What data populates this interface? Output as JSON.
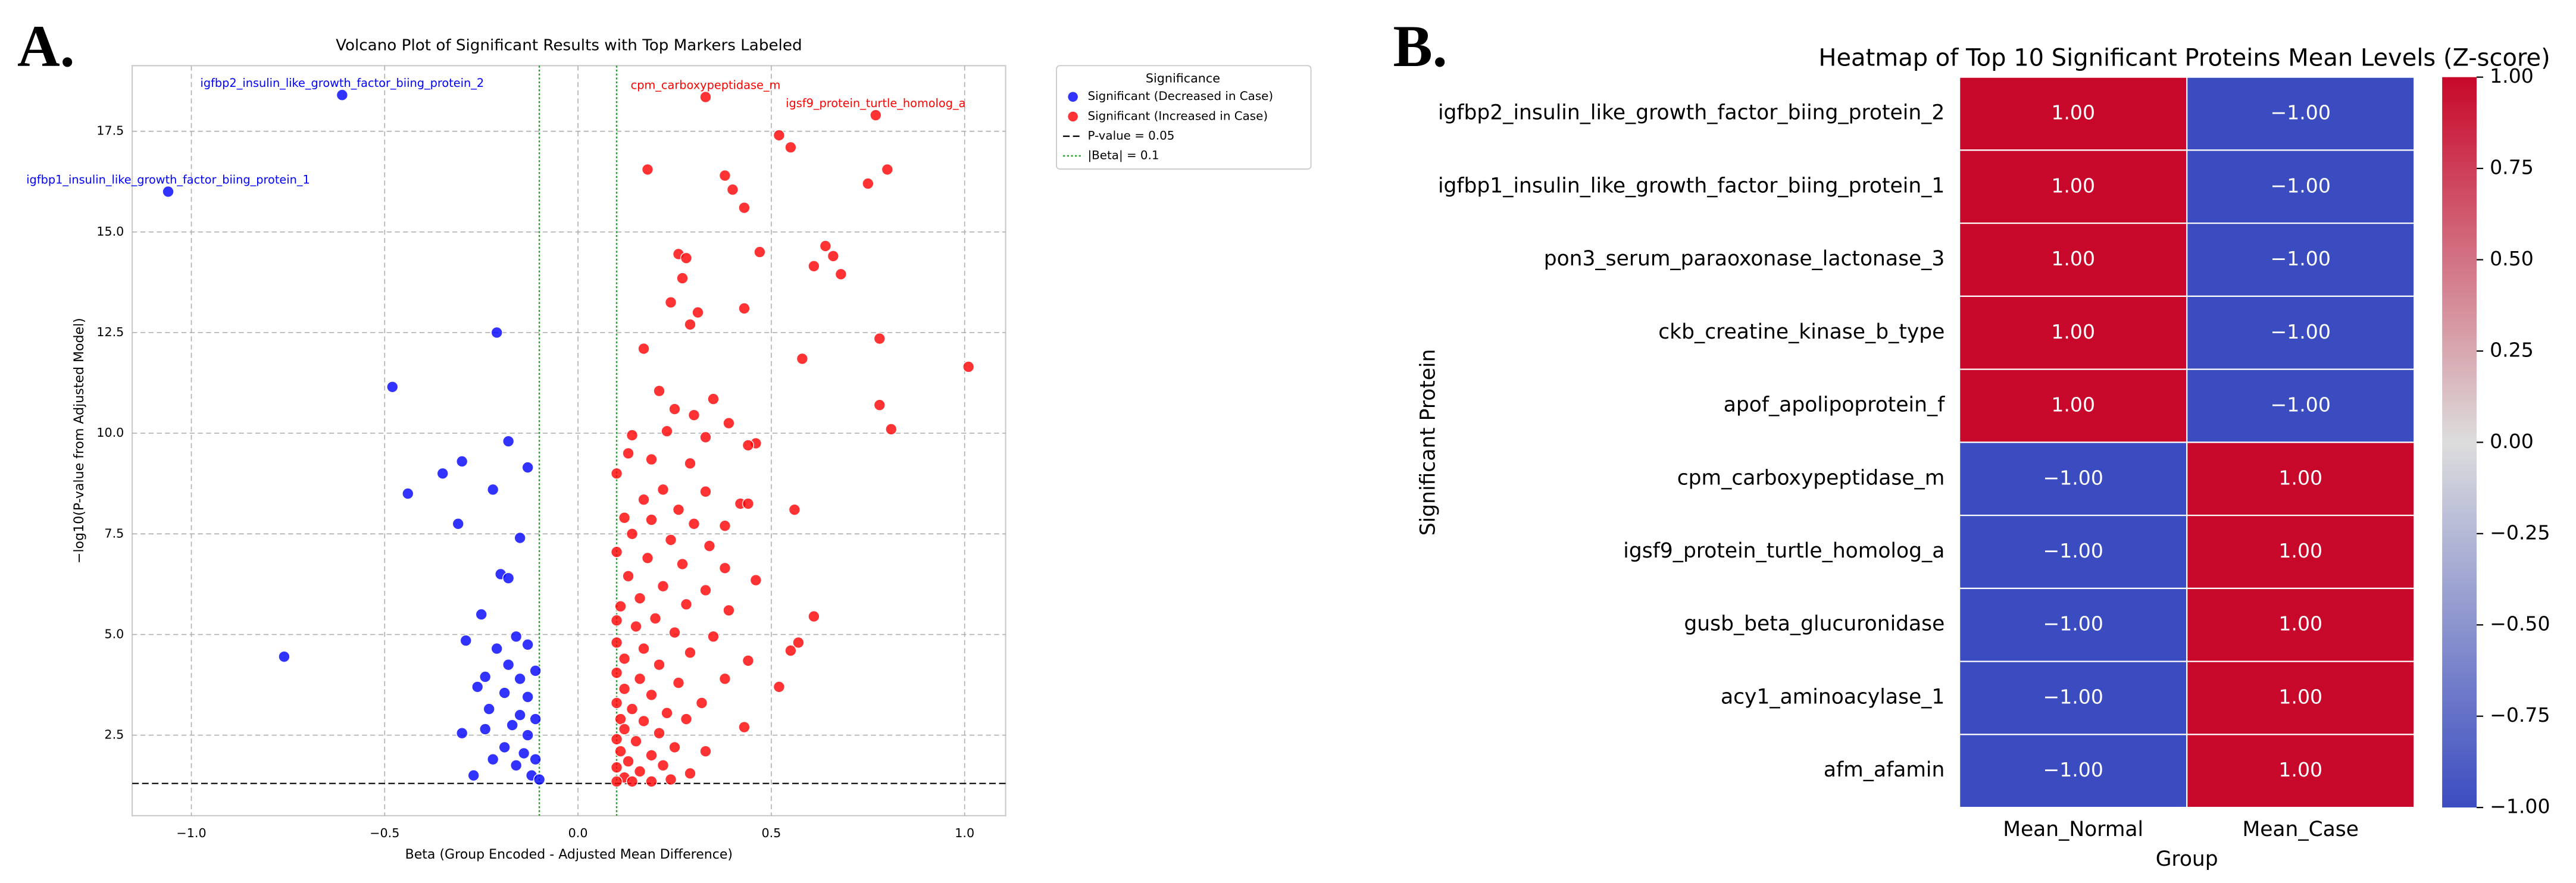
{
  "chart_data": [
    {
      "type": "scatter",
      "panel_label": "A.",
      "title": "Volcano Plot of Significant Results with Top Markers Labeled",
      "xlabel": "Beta (Group Encoded - Adjusted Mean Difference)",
      "ylabel": "−log10(P-value from Adjusted Model)",
      "xlim": [
        -1.153,
        1.106
      ],
      "ylim": [
        0.5,
        19.13
      ],
      "xticks": [
        {
          "value": -1,
          "label": "−1.0"
        },
        {
          "value": -0.5,
          "label": "−0.5"
        },
        {
          "value": 0,
          "label": "0.0"
        },
        {
          "value": 0.5,
          "label": "0.5"
        },
        {
          "value": 1,
          "label": "1.0"
        }
      ],
      "yticks": [
        2.5,
        {
          "value": 5,
          "label": "5.0"
        },
        7.5,
        {
          "value": 10,
          "label": "10.0"
        },
        12.5,
        {
          "value": 15,
          "label": "15.0"
        },
        17.5
      ],
      "grid": true,
      "legend_title": "Significance",
      "legend_position": "right",
      "series": [
        {
          "name": "Significant (Decreased in Case)",
          "color": "#0000ff",
          "x": [
            -0.61,
            -1.06,
            -0.21,
            -0.48,
            -0.18,
            -0.3,
            -0.13,
            -0.35,
            -0.44,
            -0.22,
            -0.31,
            -0.15,
            -0.2,
            -0.18,
            -0.25,
            -0.76,
            -0.29,
            -0.16,
            -0.13,
            -0.21,
            -0.18,
            -0.11,
            -0.24,
            -0.15,
            -0.26,
            -0.19,
            -0.13,
            -0.23,
            -0.15,
            -0.11,
            -0.3,
            -0.24,
            -0.17,
            -0.13,
            -0.19,
            -0.14,
            -0.11,
            -0.27,
            -0.16,
            -0.12,
            -0.1,
            -0.22
          ],
          "values": [
            18.4,
            16.0,
            12.5,
            11.15,
            9.8,
            9.3,
            9.15,
            9.0,
            8.5,
            8.6,
            7.75,
            7.4,
            6.5,
            6.4,
            5.5,
            4.45,
            4.85,
            4.95,
            4.75,
            4.65,
            4.25,
            4.1,
            3.95,
            3.9,
            3.7,
            3.55,
            3.45,
            3.15,
            3.0,
            2.9,
            2.55,
            2.65,
            2.75,
            2.5,
            2.2,
            2.05,
            1.9,
            1.5,
            1.75,
            1.5,
            1.4,
            1.9
          ]
        },
        {
          "name": "Significant (Increased in Case)",
          "color": "#ff0000",
          "x": [
            0.33,
            0.77,
            0.52,
            0.55,
            0.18,
            0.8,
            0.38,
            0.75,
            0.4,
            0.43,
            0.47,
            0.26,
            0.28,
            0.64,
            0.66,
            0.61,
            0.68,
            0.27,
            0.24,
            0.43,
            0.31,
            0.29,
            0.78,
            0.58,
            0.17,
            1.01,
            0.78,
            0.81,
            0.21,
            0.35,
            0.25,
            0.3,
            0.39,
            0.14,
            0.23,
            0.33,
            0.46,
            0.44,
            0.13,
            0.19,
            0.29,
            0.1,
            0.22,
            0.33,
            0.17,
            0.42,
            0.44,
            0.56,
            0.26,
            0.12,
            0.19,
            0.3,
            0.38,
            0.14,
            0.24,
            0.34,
            0.1,
            0.18,
            0.27,
            0.38,
            0.13,
            0.46,
            0.22,
            0.33,
            0.16,
            0.11,
            0.28,
            0.39,
            0.61,
            0.2,
            0.1,
            0.15,
            0.25,
            0.35,
            0.57,
            0.55,
            0.1,
            0.17,
            0.29,
            0.12,
            0.21,
            0.44,
            0.1,
            0.16,
            0.26,
            0.38,
            0.52,
            0.12,
            0.19,
            0.32,
            0.1,
            0.14,
            0.23,
            0.11,
            0.17,
            0.28,
            0.43,
            0.12,
            0.21,
            0.1,
            0.15,
            0.25,
            0.11,
            0.19,
            0.33,
            0.13,
            0.22,
            0.1,
            0.16,
            0.29,
            0.12,
            0.19,
            0.14,
            0.1,
            0.24
          ],
          "values": [
            18.35,
            17.9,
            17.4,
            17.1,
            16.55,
            16.55,
            16.4,
            16.2,
            16.05,
            15.6,
            14.5,
            14.45,
            14.35,
            14.65,
            14.4,
            14.15,
            13.95,
            13.85,
            13.25,
            13.1,
            13.0,
            12.7,
            12.35,
            11.85,
            12.1,
            11.65,
            10.7,
            10.1,
            11.05,
            10.85,
            10.6,
            10.45,
            10.25,
            9.95,
            10.05,
            9.9,
            9.75,
            9.7,
            9.5,
            9.35,
            9.25,
            9.0,
            8.6,
            8.55,
            8.35,
            8.25,
            8.25,
            8.1,
            8.1,
            7.9,
            7.85,
            7.75,
            7.7,
            7.5,
            7.35,
            7.2,
            7.05,
            6.9,
            6.75,
            6.65,
            6.45,
            6.35,
            6.2,
            6.1,
            5.9,
            5.7,
            5.75,
            5.6,
            5.45,
            5.4,
            5.35,
            5.2,
            5.05,
            4.95,
            4.8,
            4.6,
            4.8,
            4.65,
            4.55,
            4.4,
            4.25,
            4.35,
            4.05,
            3.9,
            3.8,
            3.9,
            3.7,
            3.65,
            3.5,
            3.3,
            3.3,
            3.15,
            3.05,
            2.9,
            2.85,
            2.9,
            2.7,
            2.65,
            2.55,
            2.4,
            2.35,
            2.2,
            2.1,
            2.0,
            2.1,
            1.85,
            1.75,
            1.7,
            1.6,
            1.55,
            1.45,
            1.35,
            1.35,
            1.35,
            1.4
          ]
        }
      ],
      "hlines": [
        {
          "value": 1.301,
          "label": "P-value = 0.05",
          "color": "#000000",
          "style": "dashed"
        }
      ],
      "vlines": [
        {
          "values": [
            -0.1,
            0.1
          ],
          "label": "|Beta| = 0.1",
          "color": "#2ca02c",
          "style": "dotted"
        }
      ],
      "annotations": [
        {
          "text": "igfbp2_insulin_like_growth_factor_biing_protein_2",
          "x": -0.61,
          "y": 18.4,
          "color": "#0000ff"
        },
        {
          "text": "igfbp1_insulin_like_growth_factor_biing_protein_1",
          "x": -1.06,
          "y": 16.0,
          "color": "#0000ff"
        },
        {
          "text": "cpm_carboxypeptidase_m",
          "x": 0.33,
          "y": 18.35,
          "color": "#ff0000"
        },
        {
          "text": "igsf9_protein_turtle_homolog_a",
          "x": 0.77,
          "y": 17.9,
          "color": "#ff0000"
        }
      ]
    },
    {
      "type": "heatmap",
      "panel_label": "B.",
      "title": "Heatmap of Top 10 Significant Proteins Mean Levels (Z-score)",
      "xlabel": "Group",
      "ylabel": "Significant Protein",
      "categories": [
        "igfbp2_insulin_like_growth_factor_biing_protein_2",
        "igfbp1_insulin_like_growth_factor_biing_protein_1",
        "pon3_serum_paraoxonase_lactonase_3",
        "ckb_creatine_kinase_b_type",
        "apof_apolipoprotein_f",
        "cpm_carboxypeptidase_m",
        "igsf9_protein_turtle_homolog_a",
        "gusb_beta_glucuronidase",
        "acy1_aminoacylase_1",
        "afm_afamin"
      ],
      "columns": [
        "Mean_Normal",
        "Mean_Case"
      ],
      "values": [
        [
          1,
          -1
        ],
        [
          1,
          -1
        ],
        [
          1,
          -1
        ],
        [
          1,
          -1
        ],
        [
          1,
          -1
        ],
        [
          -1,
          1
        ],
        [
          -1,
          1
        ],
        [
          -1,
          1
        ],
        [
          -1,
          1
        ],
        [
          -1,
          1
        ]
      ],
      "value_labels": [
        [
          "1.00",
          "−1.00"
        ],
        [
          "1.00",
          "−1.00"
        ],
        [
          "1.00",
          "−1.00"
        ],
        [
          "1.00",
          "−1.00"
        ],
        [
          "1.00",
          "−1.00"
        ],
        [
          "−1.00",
          "1.00"
        ],
        [
          "−1.00",
          "1.00"
        ],
        [
          "−1.00",
          "1.00"
        ],
        [
          "−1.00",
          "1.00"
        ],
        [
          "−1.00",
          "1.00"
        ]
      ],
      "vlim": [
        -1,
        1
      ],
      "colorscale": [
        "#3b4cc0",
        "#dddddd",
        "#c8082a"
      ],
      "colorbar_ticks": [
        {
          "value": 1,
          "label": "1.00"
        },
        {
          "value": 0.75,
          "label": "0.75"
        },
        {
          "value": 0.5,
          "label": "0.50"
        },
        {
          "value": 0.25,
          "label": "0.25"
        },
        {
          "value": 0,
          "label": "0.00"
        },
        {
          "value": -0.25,
          "label": "−0.25"
        },
        {
          "value": -0.5,
          "label": "−0.50"
        },
        {
          "value": -0.75,
          "label": "−0.75"
        },
        {
          "value": -1,
          "label": "−1.00"
        }
      ]
    }
  ]
}
